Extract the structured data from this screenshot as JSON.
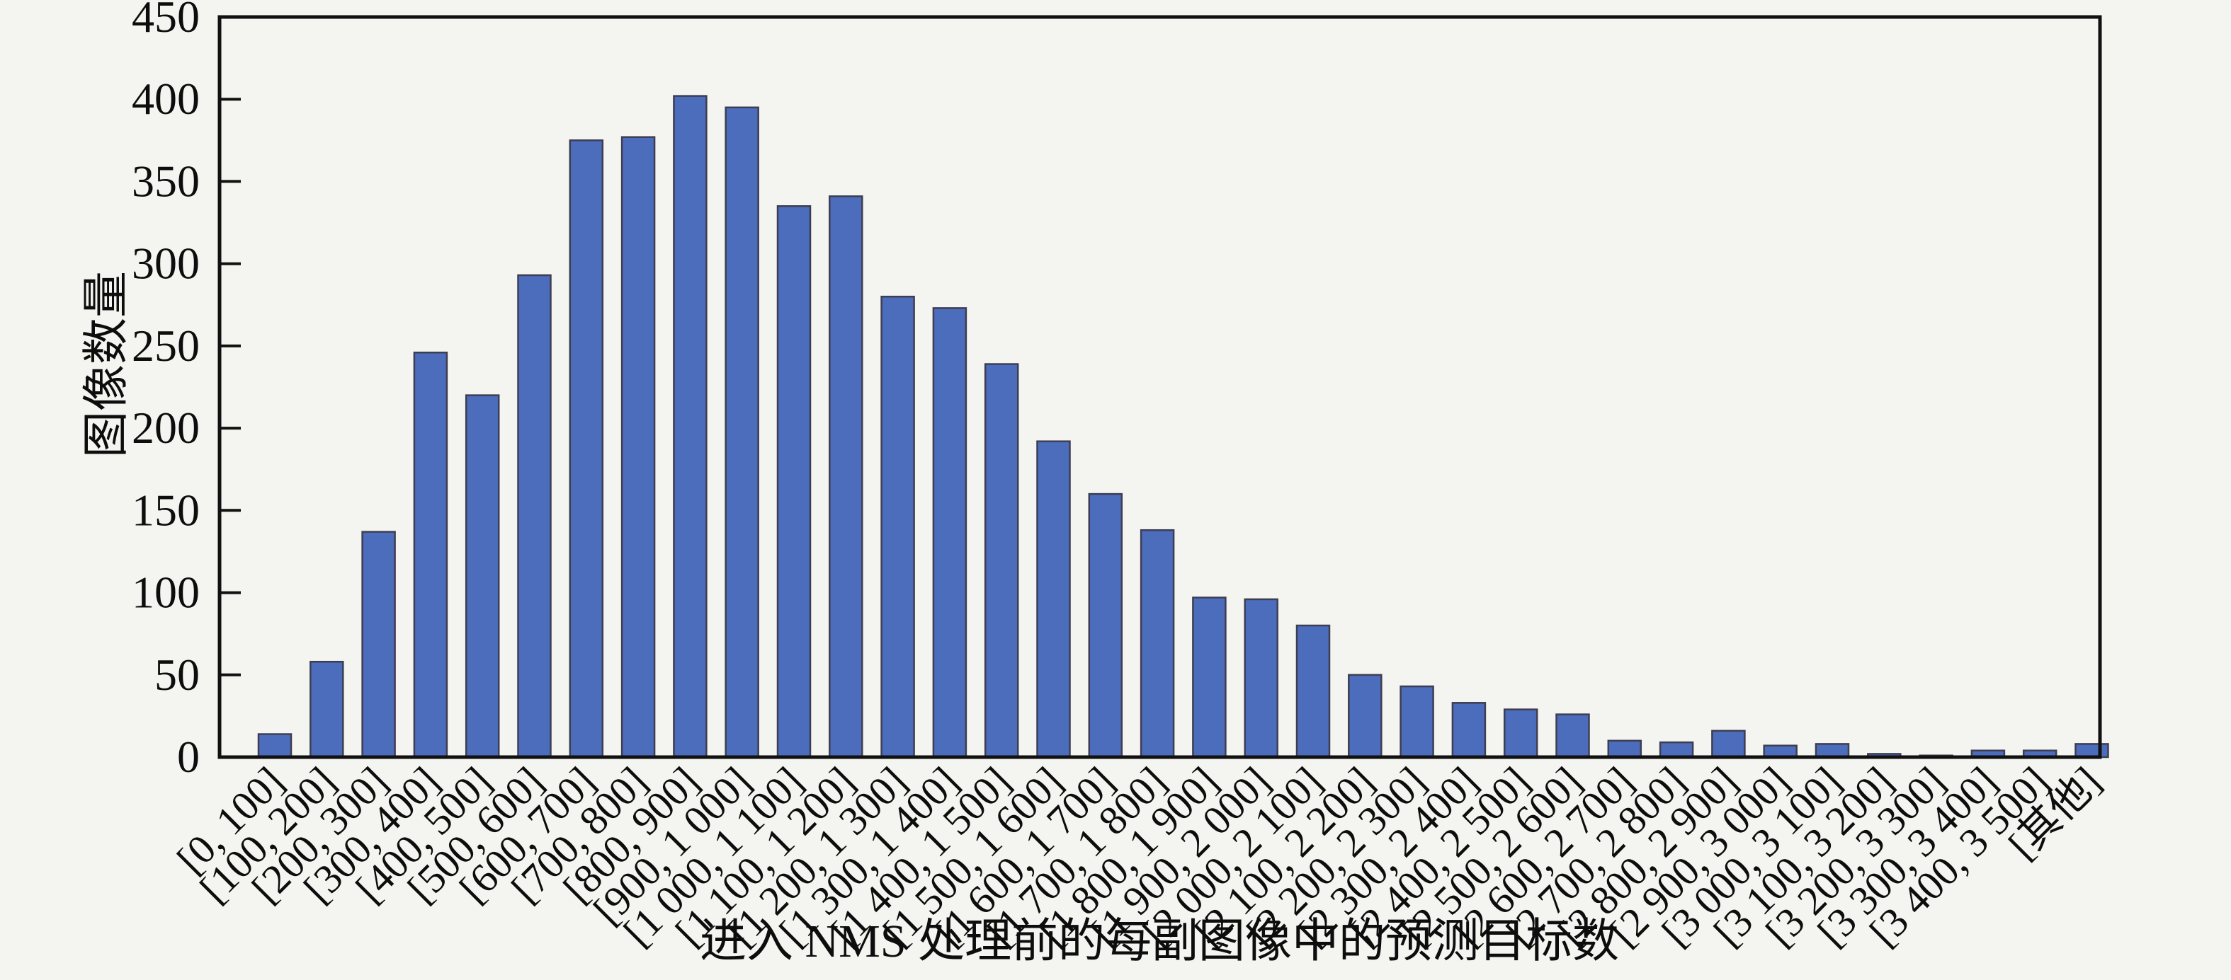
{
  "figure": {
    "background_color": "#f4f4f1",
    "axis_color": "#111111",
    "bar_fill_color": "#4c6cbc",
    "bar_edge_color": "#3e3e52"
  },
  "chart_data": {
    "type": "bar",
    "title": "",
    "xlabel": "进入 NMS 处理前的每副图像中的预测目标数",
    "ylabel": "图像数量",
    "ylim": [
      0,
      450
    ],
    "yticks": [
      0,
      50,
      100,
      150,
      200,
      250,
      300,
      350,
      400,
      450
    ],
    "grid": false,
    "legend_position": "none",
    "categories": [
      "[0, 100]",
      "[100, 200]",
      "[200, 300]",
      "[300, 400]",
      "[400, 500]",
      "[500, 600]",
      "[600, 700]",
      "[700, 800]",
      "[800, 900]",
      "[900, 1 000]",
      "[1 000, 1 100]",
      "[1 100, 1 200]",
      "[1 200, 1 300]",
      "[1 300, 1 400]",
      "[1 400, 1 500]",
      "[1 500, 1 600]",
      "[1 600, 1 700]",
      "[1 700, 1 800]",
      "[1 800, 1 900]",
      "[1 900, 2 000]",
      "[2 000, 2 100]",
      "[2 100, 2 200]",
      "[2 200, 2 300]",
      "[2 300, 2 400]",
      "[2 400, 2 500]",
      "[2 500, 2 600]",
      "[2 600, 2 700]",
      "[2 700, 2 800]",
      "[2 800, 2 900]",
      "[2 900, 3 000]",
      "[3 000, 3 100]",
      "[3 100, 3 200]",
      "[3 200, 3 300]",
      "[3 300, 3 400]",
      "[3 400, 3 500]",
      "[其他]"
    ],
    "values": [
      14,
      58,
      137,
      246,
      220,
      293,
      375,
      377,
      402,
      395,
      335,
      341,
      280,
      273,
      239,
      192,
      160,
      138,
      97,
      96,
      80,
      50,
      43,
      33,
      29,
      26,
      10,
      9,
      16,
      7,
      8,
      2,
      1,
      4,
      4,
      8
    ]
  }
}
